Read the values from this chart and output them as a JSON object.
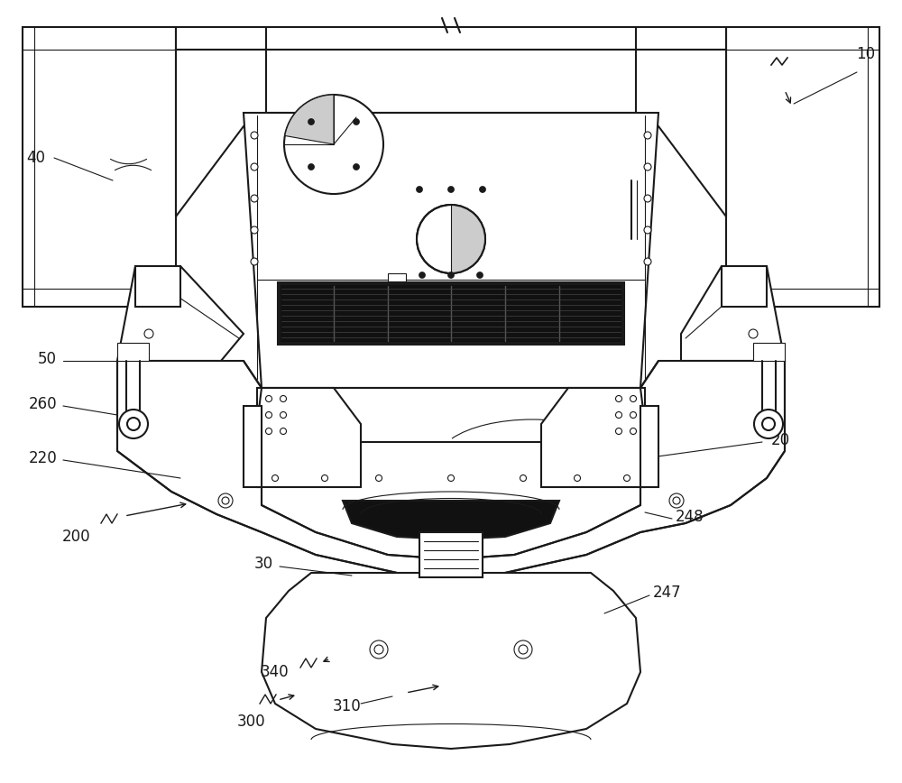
{
  "bg_color": "#ffffff",
  "line_color": "#1a1a1a",
  "dark_fill": "#111111",
  "figsize": [
    10.0,
    8.68
  ],
  "dpi": 100
}
